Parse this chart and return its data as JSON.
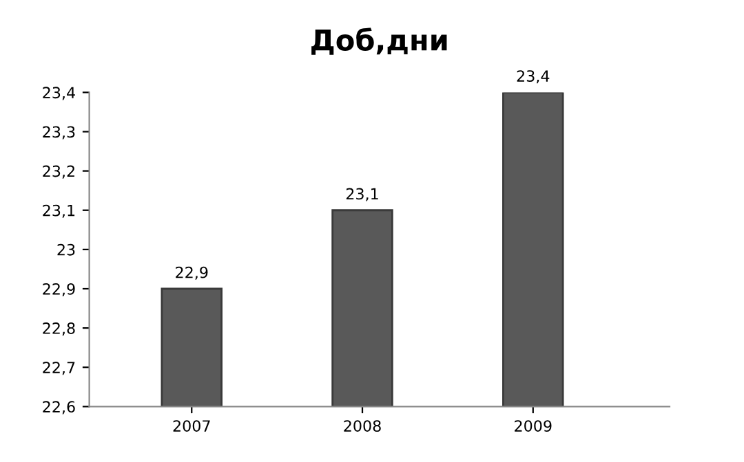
{
  "chart_data": {
    "type": "bar",
    "title": "Доб,дни",
    "categories": [
      "2007",
      "2008",
      "2009"
    ],
    "values": [
      22.9,
      23.1,
      23.4
    ],
    "value_labels": [
      "22,9",
      "23,1",
      "23,4"
    ],
    "color": "#595959",
    "ylim": [
      22.6,
      23.4
    ],
    "yticks": [
      {
        "value": 22.6,
        "label": "22,6"
      },
      {
        "value": 22.7,
        "label": "22,7"
      },
      {
        "value": 22.8,
        "label": "22,8"
      },
      {
        "value": 22.9,
        "label": "22,9"
      },
      23,
      {
        "value": 23.1,
        "label": "23,1"
      },
      {
        "value": 23.2,
        "label": "23,2"
      },
      {
        "value": 23.3,
        "label": "23,3"
      },
      {
        "value": 23.4,
        "label": "23,4"
      }
    ],
    "grid": false
  }
}
